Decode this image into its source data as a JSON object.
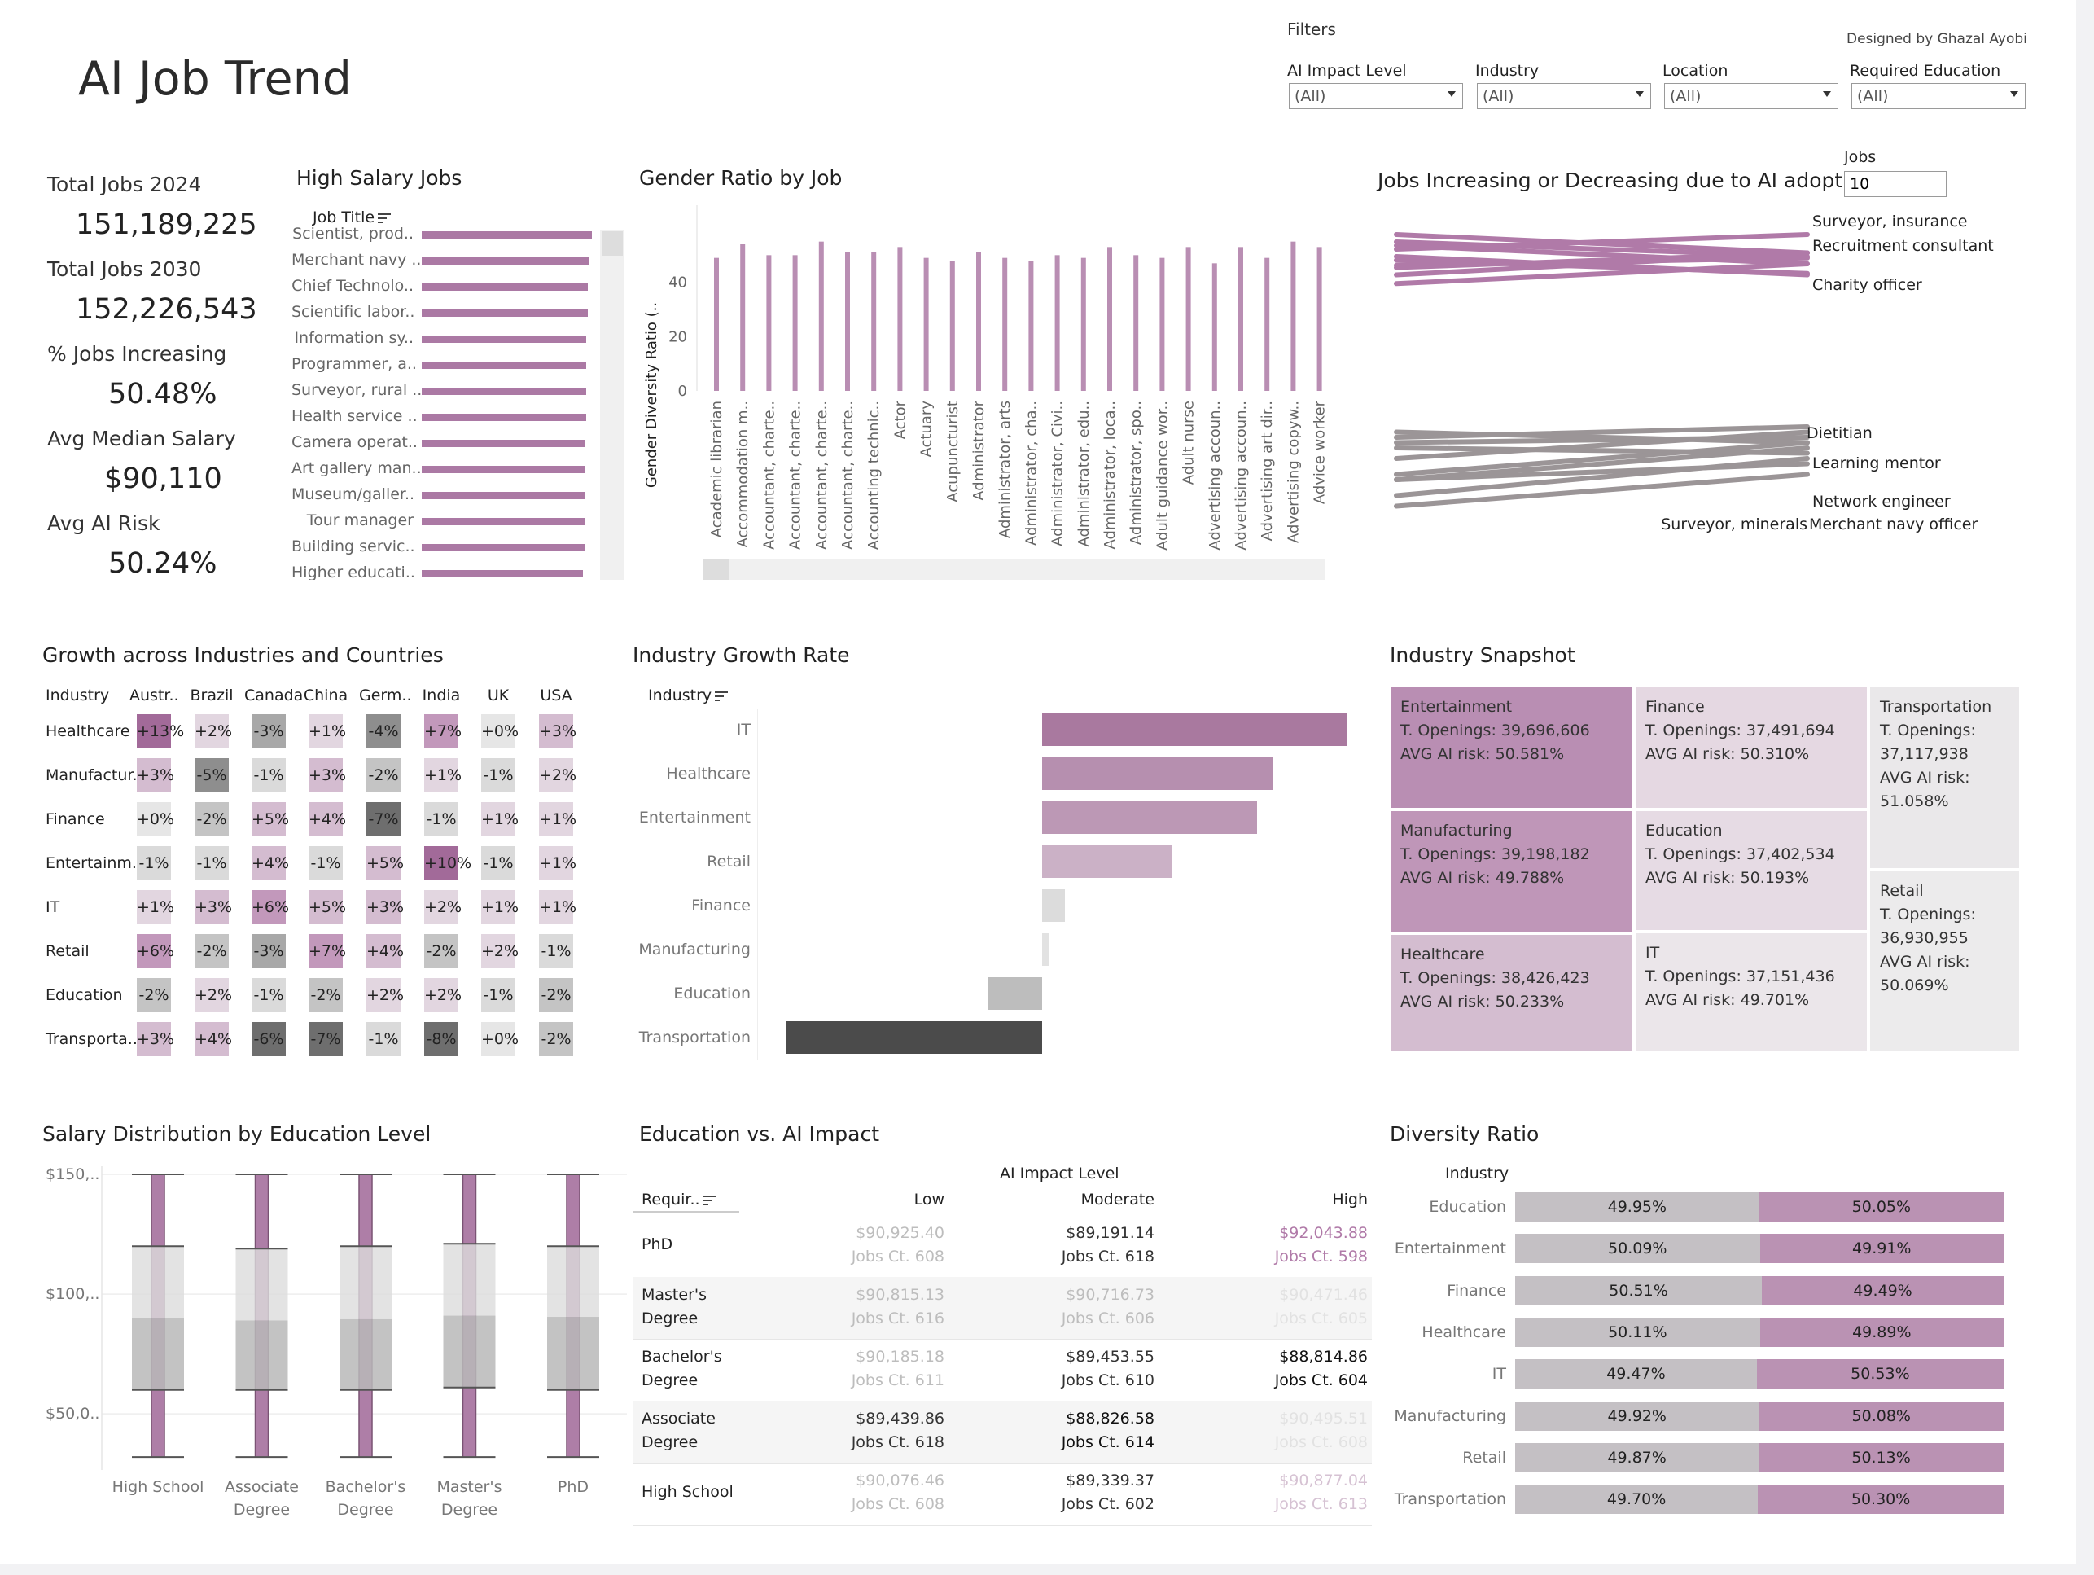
{
  "header": {
    "title": "AI Job Trend",
    "credit": "Designed by Ghazal Ayobi"
  },
  "filters": {
    "title": "Filters",
    "items": [
      {
        "label": "AI Impact Level",
        "value": "(All)"
      },
      {
        "label": "Industry",
        "value": "(All)"
      },
      {
        "label": "Location",
        "value": "(All)"
      },
      {
        "label": "Required Education",
        "value": "(All)"
      }
    ]
  },
  "kpis": [
    {
      "label": "Total Jobs 2024",
      "value": "151,189,225"
    },
    {
      "label": "Total Jobs 2030",
      "value": "152,226,543"
    },
    {
      "label": "% Jobs Increasing",
      "value": "50.48%"
    },
    {
      "label": "Avg Median Salary",
      "value": "$90,110"
    },
    {
      "label": "Avg AI Risk",
      "value": "50.24%"
    }
  ],
  "high_salary": {
    "title": "High Salary Jobs",
    "column_header": "Job Title",
    "jobs": [
      {
        "name": "Scientist, prod..",
        "value": 0.97
      },
      {
        "name": "Merchant navy ..",
        "value": 0.96
      },
      {
        "name": "Chief Technolo..",
        "value": 0.95
      },
      {
        "name": "Scientific labor..",
        "value": 0.95
      },
      {
        "name": "Information sy..",
        "value": 0.94
      },
      {
        "name": "Programmer, a..",
        "value": 0.94
      },
      {
        "name": "Surveyor, rural ..",
        "value": 0.94
      },
      {
        "name": "Health service ..",
        "value": 0.94
      },
      {
        "name": "Camera operat..",
        "value": 0.93
      },
      {
        "name": "Art gallery man..",
        "value": 0.93
      },
      {
        "name": "Museum/galler..",
        "value": 0.93
      },
      {
        "name": "Tour manager",
        "value": 0.93
      },
      {
        "name": "Building servic..",
        "value": 0.93
      },
      {
        "name": "Higher educati..",
        "value": 0.92
      }
    ]
  },
  "gender_ratio": {
    "title": "Gender Ratio by Job",
    "chart_data": {
      "type": "bar",
      "ylabel": "Gender Diversity Ratio (..",
      "ylim": [
        0,
        60
      ],
      "yticks": [
        "0",
        "20",
        "40"
      ],
      "categories": [
        "Academic librarian",
        "Accommodation m..",
        "Accountant, charte..",
        "Accountant, charte..",
        "Accountant, charte..",
        "Accountant, charte..",
        "Accounting technic..",
        "Actor",
        "Actuary",
        "Acupuncturist",
        "Administrator",
        "Administrator, arts",
        "Administrator, cha..",
        "Administrator, Civi..",
        "Administrator, edu..",
        "Administrator, loca..",
        "Administrator, spo..",
        "Adult guidance wor..",
        "Adult nurse",
        "Advertising accoun..",
        "Advertising accoun..",
        "Advertising art dir..",
        "Advertising copyw..",
        "Advice worker"
      ],
      "values": [
        49,
        54,
        50,
        50,
        55,
        51,
        51,
        53,
        49,
        48,
        51,
        49,
        48,
        50,
        49,
        53,
        50,
        49,
        53,
        47,
        53,
        49,
        55,
        53
      ]
    }
  },
  "jobs_trend": {
    "title": "Jobs Increasing or Decreasing due to AI adoption",
    "jobs_param_label": "Jobs",
    "jobs_param_value": "10",
    "increasing_labels": [
      "Surveyor, insurance",
      "Recruitment consultant",
      "Charity officer"
    ],
    "decreasing_labels": [
      "Dietitian",
      "Learning mentor",
      "Network engineer",
      "Surveyor, minerals",
      "Merchant navy officer"
    ],
    "chart_data": {
      "type": "line",
      "increasing": [
        [
          0.87,
          0.6
        ],
        [
          0.75,
          0.45
        ],
        [
          0.55,
          0.73
        ],
        [
          0.3,
          0.5
        ],
        [
          0.2,
          0.45
        ],
        [
          0.65,
          0.45
        ],
        [
          0.4,
          0.2
        ],
        [
          0.5,
          0.75
        ],
        [
          0.35,
          0.6
        ],
        [
          0.62,
          0.52
        ]
      ],
      "decreasing": [
        [
          0.95,
          0.65
        ],
        [
          0.85,
          0.5
        ],
        [
          0.7,
          0.55
        ],
        [
          0.7,
          0.4
        ],
        [
          0.65,
          0.35
        ],
        [
          0.5,
          0.25
        ],
        [
          0.4,
          0.45
        ],
        [
          0.35,
          0.3
        ],
        [
          0.3,
          0.2
        ],
        [
          0.25,
          0.35
        ]
      ]
    }
  },
  "growth_heatmap": {
    "title": "Growth across Industries and Countries",
    "row_header": "Industry",
    "columns": [
      "Austr..",
      "Brazil",
      "Canada",
      "China",
      "Germ..",
      "India",
      "UK",
      "USA"
    ],
    "rows": [
      {
        "industry": "Healthcare",
        "labels": [
          "+13%",
          "+2%",
          "-3%",
          "+1%",
          "-4%",
          "+7%",
          "+0%",
          "+3%"
        ],
        "values": [
          13,
          2,
          -3,
          1,
          -4,
          7,
          0,
          3
        ]
      },
      {
        "industry": "Manufactur..",
        "labels": [
          "+3%",
          "-5%",
          "-1%",
          "+3%",
          "-2%",
          "+1%",
          "-1%",
          "+2%"
        ],
        "values": [
          3,
          -5,
          -1,
          3,
          -2,
          1,
          -1,
          2
        ]
      },
      {
        "industry": "Finance",
        "labels": [
          "+0%",
          "-2%",
          "+5%",
          "+4%",
          "-7%",
          "-1%",
          "+1%",
          "+1%"
        ],
        "values": [
          0,
          -2,
          5,
          4,
          -7,
          -1,
          1,
          1
        ]
      },
      {
        "industry": "Entertainm..",
        "labels": [
          "-1%",
          "-1%",
          "+4%",
          "-1%",
          "+5%",
          "+10%",
          "-1%",
          "+1%"
        ],
        "values": [
          -1,
          -1,
          4,
          -1,
          5,
          10,
          -1,
          1
        ]
      },
      {
        "industry": "IT",
        "labels": [
          "+1%",
          "+3%",
          "+6%",
          "+5%",
          "+3%",
          "+2%",
          "+1%",
          "+1%"
        ],
        "values": [
          1,
          3,
          6,
          5,
          3,
          2,
          1,
          1
        ]
      },
      {
        "industry": "Retail",
        "labels": [
          "+6%",
          "-2%",
          "-3%",
          "+7%",
          "+4%",
          "-2%",
          "+2%",
          "-1%"
        ],
        "values": [
          6,
          -2,
          -3,
          7,
          4,
          -2,
          2,
          -1
        ]
      },
      {
        "industry": "Education",
        "labels": [
          "-2%",
          "+2%",
          "-1%",
          "-2%",
          "+2%",
          "+2%",
          "-1%",
          "-2%"
        ],
        "values": [
          -2,
          2,
          -1,
          -2,
          2,
          2,
          -1,
          -2
        ]
      },
      {
        "industry": "Transporta..",
        "labels": [
          "+3%",
          "+4%",
          "-6%",
          "-7%",
          "-1%",
          "-8%",
          "+0%",
          "-2%"
        ],
        "values": [
          3,
          4,
          -6,
          -7,
          -1,
          -8,
          0,
          -2
        ]
      }
    ]
  },
  "industry_growth": {
    "title": "Industry Growth Rate",
    "row_header": "Industry",
    "chart_data": {
      "type": "bar",
      "categories": [
        "IT",
        "Healthcare",
        "Entertainment",
        "Retail",
        "Finance",
        "Manufacturing",
        "Education",
        "Transportation"
      ],
      "values": [
        1.19,
        0.9,
        0.84,
        0.51,
        0.09,
        0.03,
        -0.21,
        -1.0
      ],
      "colors": [
        "#a9799f",
        "#b68faf",
        "#bc98b5",
        "#cbb1c6",
        "#dcdcdc",
        "#e2e2e2",
        "#bdbdbd",
        "#4b4b4b"
      ]
    }
  },
  "industry_snapshot": {
    "title": "Industry Snapshot",
    "cells": [
      {
        "name": "Entertainment",
        "line1": "T. Openings: 39,696,606",
        "line2": "AVG AI risk: 50.581%",
        "color": "#b98eb3"
      },
      {
        "name": "Finance",
        "line1": "T. Openings: 37,491,694",
        "line2": "AVG AI risk: 50.310%",
        "color": "#e5d8e2"
      },
      {
        "name": "Transportation",
        "line1": "T. Openings:",
        "line1b": "37,117,938",
        "line2": "AVG AI risk:",
        "line2b": "51.058%",
        "color": "#eae8ea"
      },
      {
        "name": "Manufacturing",
        "line1": "T. Openings: 39,198,182",
        "line2": "AVG AI risk: 49.788%",
        "color": "#bf96b8"
      },
      {
        "name": "Education",
        "line1": "T. Openings: 37,402,534",
        "line2": "AVG AI risk: 50.193%",
        "color": "#e6dbe4"
      },
      {
        "name": "Retail",
        "line1": "T. Openings:",
        "line1b": "36,930,955",
        "line2": "AVG AI risk:",
        "line2b": "50.069%",
        "color": "#ecebec"
      },
      {
        "name": "Healthcare",
        "line1": "T. Openings: 38,426,423",
        "line2": "AVG AI risk: 50.233%",
        "color": "#d4bdd0"
      },
      {
        "name": "IT",
        "line1": "T. Openings: 37,151,436",
        "line2": "AVG AI risk: 49.701%",
        "color": "#ebe6ea"
      }
    ]
  },
  "salary_dist": {
    "title": "Salary Distribution by Education Level",
    "chart_data": {
      "type": "box",
      "ylim": [
        30000,
        150000
      ],
      "yticks": [
        {
          "value": 150000,
          "label": "$150,.."
        },
        {
          "value": 100000,
          "label": "$100,.."
        },
        {
          "value": 50000,
          "label": "$50,0.."
        }
      ],
      "categories": [
        [
          "High School"
        ],
        [
          "Associate",
          "Degree"
        ],
        [
          "Bachelor's",
          "Degree"
        ],
        [
          "Master's",
          "Degree"
        ],
        [
          "PhD"
        ]
      ],
      "boxes": [
        {
          "min": 32000,
          "q1": 60000,
          "median": 90000,
          "q3": 120000,
          "max": 150000
        },
        {
          "min": 32000,
          "q1": 60000,
          "median": 89000,
          "q3": 119000,
          "max": 150000
        },
        {
          "min": 32000,
          "q1": 60000,
          "median": 89500,
          "q3": 120000,
          "max": 150000
        },
        {
          "min": 32000,
          "q1": 61000,
          "median": 91000,
          "q3": 121000,
          "max": 150000
        },
        {
          "min": 32000,
          "q1": 60000,
          "median": 90500,
          "q3": 120000,
          "max": 150000
        }
      ]
    }
  },
  "edu_ai": {
    "title": "Education vs. AI Impact",
    "group_header": "AI Impact Level",
    "row_header": "Requir..",
    "columns": [
      "Low",
      "Moderate",
      "High"
    ],
    "rows": [
      {
        "label": [
          "PhD"
        ],
        "cells": [
          {
            "salary": "$90,925.40",
            "count": "Jobs Ct. 608",
            "tone": "faint"
          },
          {
            "salary": "$89,191.14",
            "count": "Jobs Ct. 618",
            "tone": "dark"
          },
          {
            "salary": "$92,043.88",
            "count": "Jobs Ct. 598",
            "tone": "purple"
          }
        ]
      },
      {
        "label": [
          "Master's",
          "Degree"
        ],
        "cells": [
          {
            "salary": "$90,815.13",
            "count": "Jobs Ct. 616",
            "tone": "faint"
          },
          {
            "salary": "$90,716.73",
            "count": "Jobs Ct. 606",
            "tone": "faint"
          },
          {
            "salary": "$90,471.46",
            "count": "Jobs Ct. 605",
            "tone": "fainter"
          }
        ]
      },
      {
        "label": [
          "Bachelor's",
          "Degree"
        ],
        "cells": [
          {
            "salary": "$90,185.18",
            "count": "Jobs Ct. 611",
            "tone": "faint"
          },
          {
            "salary": "$89,453.55",
            "count": "Jobs Ct. 610",
            "tone": "dark"
          },
          {
            "salary": "$88,814.86",
            "count": "Jobs Ct. 604",
            "tone": "black"
          }
        ]
      },
      {
        "label": [
          "Associate",
          "Degree"
        ],
        "cells": [
          {
            "salary": "$89,439.86",
            "count": "Jobs Ct. 618",
            "tone": "dark"
          },
          {
            "salary": "$88,826.58",
            "count": "Jobs Ct. 614",
            "tone": "black"
          },
          {
            "salary": "$90,495.51",
            "count": "Jobs Ct. 608",
            "tone": "fainter"
          }
        ]
      },
      {
        "label": [
          "High School"
        ],
        "cells": [
          {
            "salary": "$90,076.46",
            "count": "Jobs Ct. 608",
            "tone": "faint"
          },
          {
            "salary": "$89,339.37",
            "count": "Jobs Ct. 602",
            "tone": "dark"
          },
          {
            "salary": "$90,877.04",
            "count": "Jobs Ct. 613",
            "tone": "purplefaint"
          }
        ]
      }
    ]
  },
  "diversity": {
    "title": "Diversity Ratio",
    "row_header": "Industry",
    "rows": [
      {
        "industry": "Education",
        "a": 49.95,
        "b": 50.05,
        "a_label": "49.95%",
        "b_label": "50.05%"
      },
      {
        "industry": "Entertainment",
        "a": 50.09,
        "b": 49.91,
        "a_label": "50.09%",
        "b_label": "49.91%"
      },
      {
        "industry": "Finance",
        "a": 50.51,
        "b": 49.49,
        "a_label": "50.51%",
        "b_label": "49.49%"
      },
      {
        "industry": "Healthcare",
        "a": 50.11,
        "b": 49.89,
        "a_label": "50.11%",
        "b_label": "49.89%"
      },
      {
        "industry": "IT",
        "a": 49.47,
        "b": 50.53,
        "a_label": "49.47%",
        "b_label": "50.53%"
      },
      {
        "industry": "Manufacturing",
        "a": 49.92,
        "b": 50.08,
        "a_label": "49.92%",
        "b_label": "50.08%"
      },
      {
        "industry": "Retail",
        "a": 49.87,
        "b": 50.13,
        "a_label": "49.87%",
        "b_label": "50.13%"
      },
      {
        "industry": "Transportation",
        "a": 49.7,
        "b": 50.3,
        "a_label": "49.70%",
        "b_label": "50.30%"
      }
    ]
  },
  "colors": {
    "accent": "#ab79a4",
    "grey": "#c4c0c4",
    "dark": "#4b4b4b"
  }
}
